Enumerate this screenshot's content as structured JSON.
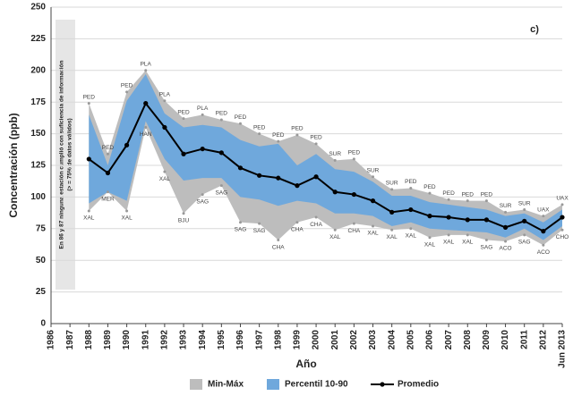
{
  "chart_data": {
    "type": "line",
    "panel_label": "c)",
    "y_label": "Concentración (ppb)",
    "x_label": "Año",
    "note": [
      "En 86 y 87 ninguna estación cumplió con suficiencia de información",
      "(> =  75% de datos válidos)"
    ],
    "categories": [
      "1986",
      "1987",
      "1988",
      "1989",
      "1990",
      "1991",
      "1992",
      "1993",
      "1994",
      "1995",
      "1996",
      "1997",
      "1998",
      "1999",
      "2000",
      "2001",
      "2002",
      "2003",
      "2004",
      "2005",
      "2006",
      "2007",
      "2008",
      "2009",
      "2010",
      "2011",
      "2012",
      "Jun 2013"
    ],
    "ylim": [
      0,
      250
    ],
    "yticks": [
      0,
      25,
      50,
      75,
      100,
      125,
      150,
      175,
      200,
      225,
      250
    ],
    "grid": true,
    "series": [
      {
        "name": "Min-Máx",
        "type": "band",
        "color": "#bdbdbd",
        "high": [
          null,
          null,
          174,
          134,
          183,
          200,
          176,
          162,
          165,
          161,
          158,
          150,
          144,
          149,
          142,
          129,
          130,
          116,
          106,
          107,
          103,
          98,
          97,
          97,
          88,
          90,
          85,
          94
        ],
        "low": [
          null,
          null,
          89,
          104,
          89,
          155,
          120,
          87,
          102,
          109,
          80,
          79,
          66,
          80,
          84,
          74,
          79,
          77,
          74,
          75,
          68,
          70,
          70,
          66,
          65,
          70,
          62,
          74
        ],
        "high_labels": [
          null,
          null,
          "PED",
          "PED",
          "PED",
          "PLA",
          "PLA",
          "PED",
          "PLA",
          "PED",
          "PED",
          "PED",
          "PED",
          "PED",
          "PED",
          "SUR",
          "PED",
          "SUR",
          "SUR",
          "PED",
          "PED",
          "PED",
          "PED",
          "PED",
          "SUR",
          "SUR",
          "UAX",
          "UAX"
        ],
        "low_labels": [
          null,
          null,
          "XAL",
          "MER",
          "XAL",
          "HAN",
          "XAL",
          "BJU",
          "SAG",
          "SAG",
          "SAG",
          "SAG",
          "CHA",
          "CHA",
          "CHA",
          "XAL",
          "CHA",
          "XAL",
          "XAL",
          "XAL",
          "XAL",
          "XAL",
          "XAL",
          "SAG",
          "ACO",
          "SAG",
          "ACO",
          "CHO"
        ]
      },
      {
        "name": "Percentil 10-90",
        "type": "band",
        "color": "#6fa8dc",
        "high": [
          null,
          null,
          165,
          125,
          176,
          197,
          166,
          155,
          157,
          155,
          145,
          140,
          142,
          125,
          134,
          122,
          120,
          112,
          101,
          101,
          96,
          94,
          92,
          90,
          85,
          87,
          80,
          90
        ],
        "low": [
          null,
          null,
          95,
          104,
          97,
          160,
          130,
          113,
          115,
          115,
          100,
          98,
          93,
          97,
          95,
          87,
          87,
          85,
          77,
          80,
          75,
          74,
          73,
          72,
          68,
          75,
          66,
          77
        ]
      },
      {
        "name": "Promedio",
        "type": "line",
        "color": "#000000",
        "values": [
          null,
          null,
          130,
          119,
          141,
          174,
          155,
          134,
          138,
          135,
          123,
          117,
          115,
          109,
          116,
          104,
          102,
          97,
          88,
          90,
          85,
          84,
          82,
          82,
          76,
          81,
          73,
          84
        ]
      }
    ]
  }
}
